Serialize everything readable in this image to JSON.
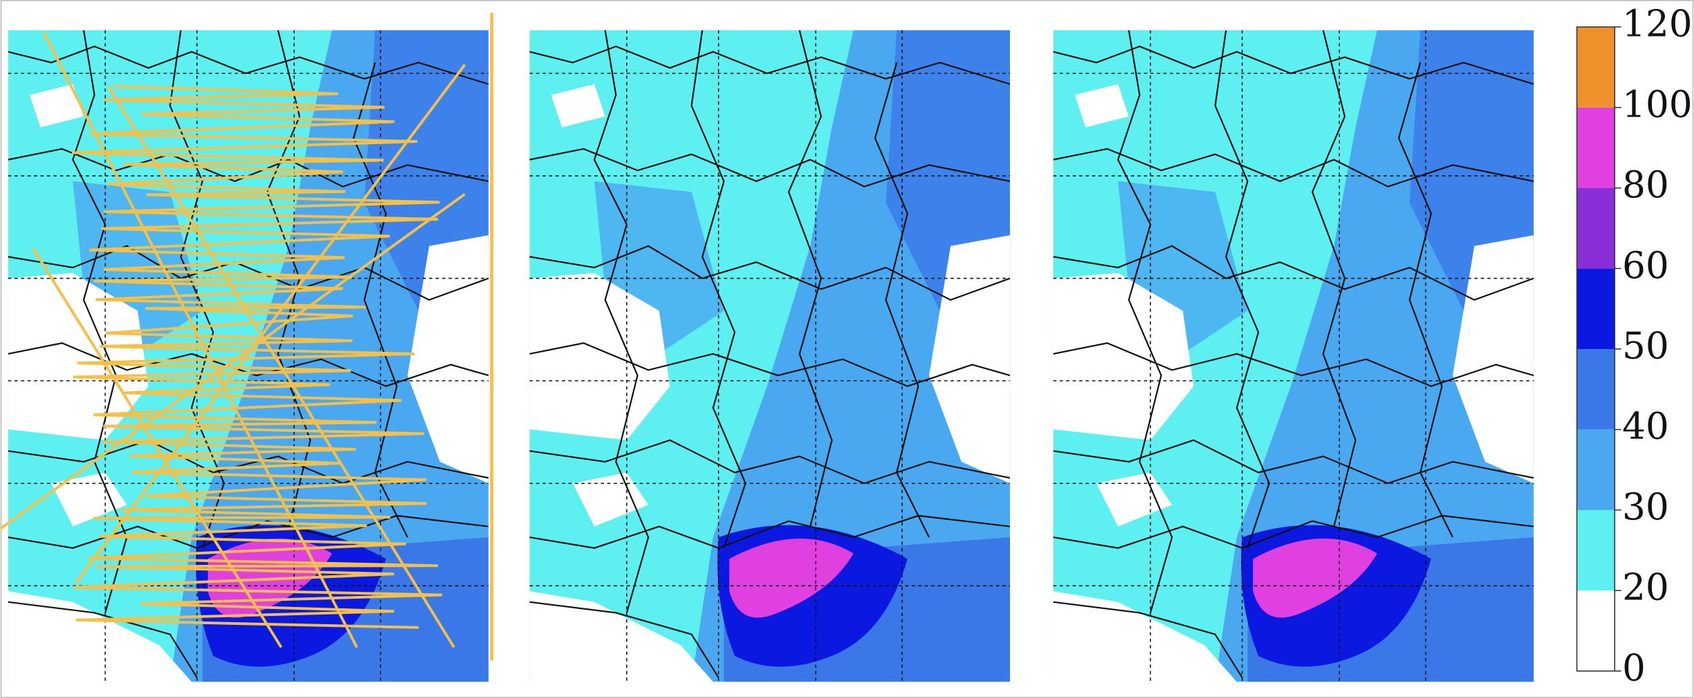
{
  "colorbar": {
    "ticks": [
      0,
      20,
      30,
      40,
      50,
      60,
      80,
      100,
      120
    ],
    "colors": [
      "#ffffff",
      "#5ef0f0",
      "#4aa8f0",
      "#3a78e8",
      "#0a18e0",
      "#8a2ed8",
      "#e040e0",
      "#f0902a"
    ]
  }
}
